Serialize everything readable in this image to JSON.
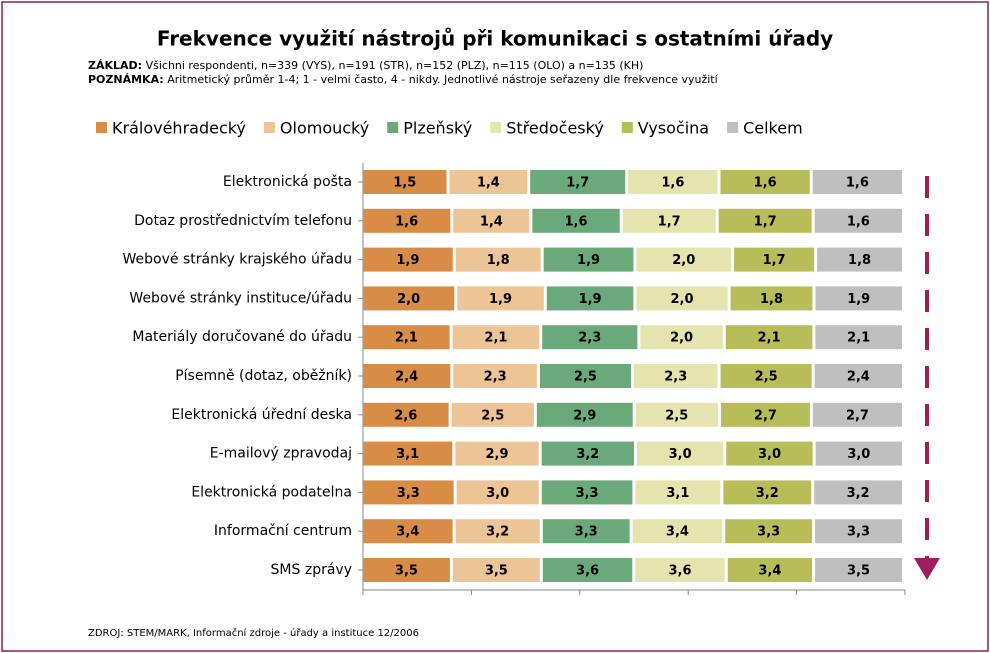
{
  "chart_data": {
    "type": "bar",
    "orientation": "horizontal",
    "stacking": "percent",
    "title": "Frekvence využití nástrojů při komunikaci s ostatními úřady",
    "base_label": "ZÁKLAD:",
    "base_text": "Všichni respondenti, n=339 (VYS), n=191 (STR), n=152 (PLZ), n=115 (OLO) a n=135 (KH)",
    "note_label": "POZNÁMKA:",
    "note_text": "Aritmetický průměr 1-4; 1 - velmi často, 4 - nikdy. Jednotlivé nástroje seřazeny dle frekvence využití",
    "source": "ZDROJ: STEM/MARK, Informační zdroje - úřady a instituce 12/2006",
    "categories": [
      "Elektronická pošta",
      "Dotaz prostřednictvím telefonu",
      "Webové stránky krajského úřadu",
      "Webové stránky instituce/úřadu",
      "Materiály doručované do úřadu",
      "Písemně (dotaz, oběžník)",
      "Elektronická úřední deska",
      "E-mailový zpravodaj",
      "Elektronická podatelna",
      "Informační centrum",
      "SMS zprávy"
    ],
    "series": [
      {
        "name": "Královéhradecký",
        "color": "#d98c45",
        "values": [
          1.5,
          1.6,
          1.9,
          2.0,
          2.1,
          2.4,
          2.6,
          3.1,
          3.3,
          3.4,
          3.5
        ],
        "value_labels": [
          "1,5",
          "1,6",
          "1,9",
          "2,0",
          "2,1",
          "2,4",
          "2,6",
          "3,1",
          "3,3",
          "3,4",
          "3,5"
        ]
      },
      {
        "name": "Olomoucký",
        "color": "#ecc496",
        "values": [
          1.4,
          1.4,
          1.8,
          1.9,
          2.1,
          2.3,
          2.5,
          2.9,
          3.0,
          3.2,
          3.5
        ],
        "value_labels": [
          "1,4",
          "1,4",
          "1,8",
          "1,9",
          "2,1",
          "2,3",
          "2,5",
          "2,9",
          "3,0",
          "3,2",
          "3,5"
        ]
      },
      {
        "name": "Plzeňský",
        "color": "#6aaa7a",
        "values": [
          1.7,
          1.6,
          1.9,
          1.9,
          2.3,
          2.5,
          2.9,
          3.2,
          3.3,
          3.3,
          3.6
        ],
        "value_labels": [
          "1,7",
          "1,6",
          "1,9",
          "1,9",
          "2,3",
          "2,5",
          "2,9",
          "3,2",
          "3,3",
          "3,3",
          "3,6"
        ]
      },
      {
        "name": "Středočeský",
        "color": "#e6e4ae",
        "values": [
          1.6,
          1.7,
          2.0,
          2.0,
          2.0,
          2.3,
          2.5,
          3.0,
          3.1,
          3.4,
          3.6
        ],
        "value_labels": [
          "1,6",
          "1,7",
          "2,0",
          "2,0",
          "2,0",
          "2,3",
          "2,5",
          "3,0",
          "3,1",
          "3,4",
          "3,6"
        ]
      },
      {
        "name": "Vysočina",
        "color": "#b8bd5a",
        "values": [
          1.6,
          1.7,
          1.7,
          1.8,
          2.1,
          2.5,
          2.7,
          3.0,
          3.2,
          3.3,
          3.4
        ],
        "value_labels": [
          "1,6",
          "1,7",
          "1,7",
          "1,8",
          "2,1",
          "2,5",
          "2,7",
          "3,0",
          "3,2",
          "3,3",
          "3,4"
        ]
      },
      {
        "name": "Celkem",
        "color": "#bfbfbf",
        "values": [
          1.6,
          1.6,
          1.8,
          1.9,
          2.1,
          2.4,
          2.7,
          3.0,
          3.2,
          3.3,
          3.5
        ],
        "value_labels": [
          "1,6",
          "1,6",
          "1,8",
          "1,9",
          "2,1",
          "2,4",
          "2,7",
          "3,0",
          "3,2",
          "3,3",
          "3,5"
        ]
      }
    ],
    "xlim": [
      0,
      100
    ],
    "xticks": [
      0,
      20,
      40,
      60,
      80,
      100
    ]
  }
}
